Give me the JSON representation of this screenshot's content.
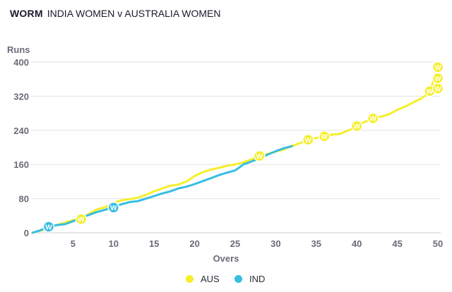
{
  "header": {
    "label": "WORM",
    "match": "INDIA WOMEN v AUSTRALIA WOMEN"
  },
  "colors": {
    "aus": "#f5ef2a",
    "ind": "#35bde3",
    "grid": "#e3e3e3",
    "axis_text": "#6b6b78",
    "wicket_text": "#ffffff"
  },
  "chart_data": {
    "type": "line",
    "title": "WORM",
    "xlabel": "Overs",
    "ylabel": "Runs",
    "xlim": [
      0,
      50
    ],
    "ylim": [
      0,
      400
    ],
    "xticks": [
      5,
      10,
      15,
      20,
      25,
      30,
      35,
      40,
      45,
      50
    ],
    "yticks": [
      0,
      80,
      160,
      240,
      320,
      400
    ],
    "wicket_label": "W",
    "series": [
      {
        "name": "AUS",
        "color": "#f5ef2a",
        "x": [
          0,
          1,
          2,
          3,
          4,
          5,
          6,
          7,
          8,
          9,
          10,
          11,
          12,
          13,
          14,
          15,
          16,
          17,
          18,
          19,
          20,
          21,
          22,
          23,
          24,
          25,
          26,
          27,
          28,
          29,
          30,
          31,
          32,
          33,
          34,
          35,
          36,
          37,
          38,
          39,
          40,
          41,
          42,
          43,
          44,
          45,
          46,
          47,
          48,
          49,
          50
        ],
        "values": [
          0,
          5,
          12,
          18,
          24,
          30,
          32,
          45,
          55,
          60,
          70,
          76,
          79,
          82,
          89,
          97,
          104,
          110,
          113,
          120,
          133,
          142,
          148,
          152,
          157,
          160,
          165,
          172,
          180,
          185,
          190,
          195,
          203,
          210,
          218,
          222,
          226,
          230,
          232,
          240,
          250,
          260,
          268,
          272,
          278,
          288,
          296,
          306,
          315,
          330,
          390
        ],
        "wickets": [
          [
            6,
            32
          ],
          [
            10,
            60
          ],
          [
            28,
            180
          ],
          [
            34,
            218
          ],
          [
            36,
            226
          ],
          [
            40,
            250
          ],
          [
            42,
            268
          ],
          [
            49,
            332
          ],
          [
            50,
            338
          ],
          [
            50,
            362
          ],
          [
            50,
            388
          ]
        ]
      },
      {
        "name": "IND",
        "color": "#35bde3",
        "x": [
          0,
          1,
          2,
          3,
          4,
          5,
          6,
          7,
          8,
          9,
          10,
          11,
          12,
          13,
          14,
          15,
          16,
          17,
          18,
          19,
          20,
          21,
          22,
          23,
          24,
          25,
          26,
          27,
          28,
          29,
          30,
          31,
          32
        ],
        "values": [
          0,
          6,
          14,
          18,
          20,
          27,
          35,
          42,
          49,
          54,
          60,
          67,
          72,
          74,
          80,
          86,
          92,
          97,
          104,
          108,
          114,
          121,
          128,
          135,
          141,
          146,
          160,
          167,
          174,
          183,
          191,
          198,
          203
        ],
        "wickets": [
          [
            2,
            14
          ],
          [
            10,
            59
          ]
        ]
      }
    ],
    "legend": [
      "AUS",
      "IND"
    ],
    "legend_position": "bottom-center"
  }
}
